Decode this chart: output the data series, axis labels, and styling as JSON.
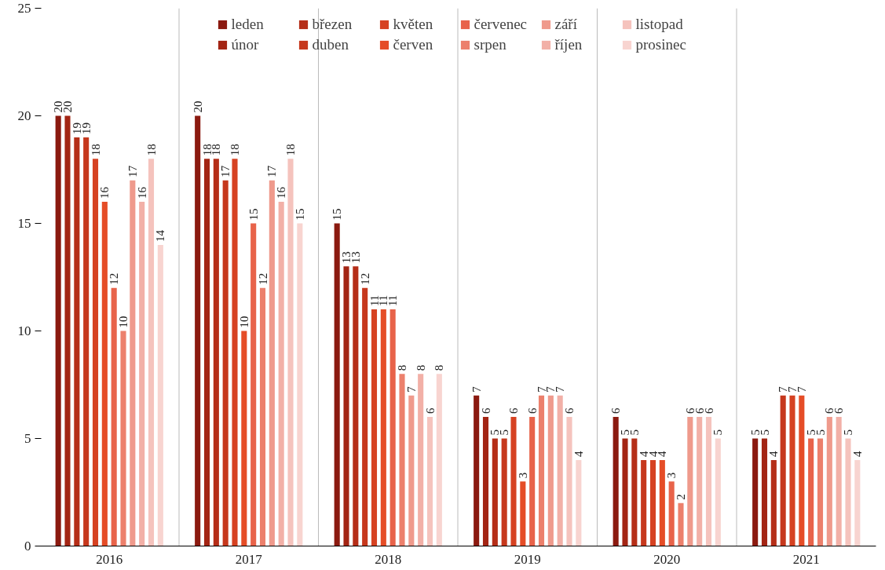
{
  "chart_data": {
    "type": "bar",
    "categories": [
      "2016",
      "2017",
      "2018",
      "2019",
      "2020",
      "2021"
    ],
    "series": [
      {
        "name": "leden",
        "color": "#8b1a10",
        "values": [
          20,
          20,
          15,
          7,
          6,
          5
        ]
      },
      {
        "name": "únor",
        "color": "#a32514",
        "values": [
          20,
          18,
          13,
          6,
          5,
          5
        ]
      },
      {
        "name": "březen",
        "color": "#b52e18",
        "values": [
          19,
          18,
          13,
          5,
          5,
          4
        ]
      },
      {
        "name": "duben",
        "color": "#c6381d",
        "values": [
          19,
          17,
          12,
          5,
          4,
          7
        ]
      },
      {
        "name": "květen",
        "color": "#d64222",
        "values": [
          18,
          18,
          11,
          6,
          4,
          7
        ]
      },
      {
        "name": "červen",
        "color": "#e54d27",
        "values": [
          16,
          10,
          11,
          3,
          4,
          7
        ]
      },
      {
        "name": "červenec",
        "color": "#e8634a",
        "values": [
          12,
          15,
          11,
          6,
          3,
          5
        ]
      },
      {
        "name": "srpen",
        "color": "#ec806c",
        "values": [
          10,
          12,
          8,
          7,
          2,
          5
        ]
      },
      {
        "name": "září",
        "color": "#ef9a8c",
        "values": [
          17,
          17,
          7,
          7,
          6,
          6
        ]
      },
      {
        "name": "říjen",
        "color": "#f2b0a7",
        "values": [
          16,
          16,
          8,
          7,
          6,
          6
        ]
      },
      {
        "name": "listopad",
        "color": "#f5c3bd",
        "values": [
          18,
          18,
          6,
          6,
          6,
          5
        ]
      },
      {
        "name": "prosinec",
        "color": "#f8d4d0",
        "values": [
          14,
          15,
          8,
          4,
          5,
          4
        ]
      }
    ],
    "ylim": [
      0,
      25
    ],
    "yticks": [
      0,
      5,
      10,
      15,
      20,
      25
    ],
    "data_labels": true,
    "legend": "top"
  }
}
